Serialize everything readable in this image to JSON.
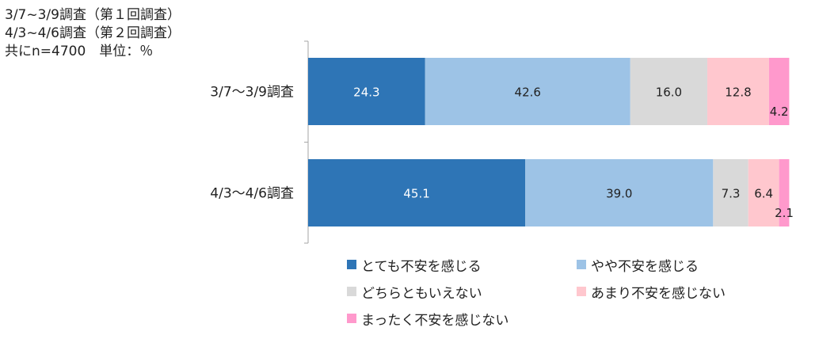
{
  "header": {
    "lines": [
      "3/7~3/9調査（第１回調査）",
      "4/3~4/6調査（第２回調査）",
      "共にn=4700　単位：％"
    ]
  },
  "chart_data": {
    "type": "bar",
    "orientation": "horizontal",
    "stacked": true,
    "normalized": true,
    "unit": "%",
    "categories": [
      "3/7～3/9調査",
      "4/3～4/6調査"
    ],
    "series": [
      {
        "name": "とても不安を感じる",
        "values": [
          24.3,
          45.1
        ],
        "color": "#2e75b6",
        "label_color": "#ffffff"
      },
      {
        "name": "やや不安を感じる",
        "values": [
          42.6,
          39.0
        ],
        "color": "#9dc3e6",
        "label_color": "#222222"
      },
      {
        "name": "どちらともいえない",
        "values": [
          16.0,
          7.3
        ],
        "color": "#d9d9d9",
        "label_color": "#222222"
      },
      {
        "name": "あまり不安を感じない",
        "values": [
          12.8,
          6.4
        ],
        "color": "#ffc7ce",
        "label_color": "#222222"
      },
      {
        "name": "まったく不安を感じない",
        "values": [
          4.2,
          2.1
        ],
        "color": "#ff99cc",
        "label_color": "#222222"
      }
    ],
    "xlim": [
      0,
      100
    ],
    "grid": false,
    "legend_position": "bottom"
  }
}
